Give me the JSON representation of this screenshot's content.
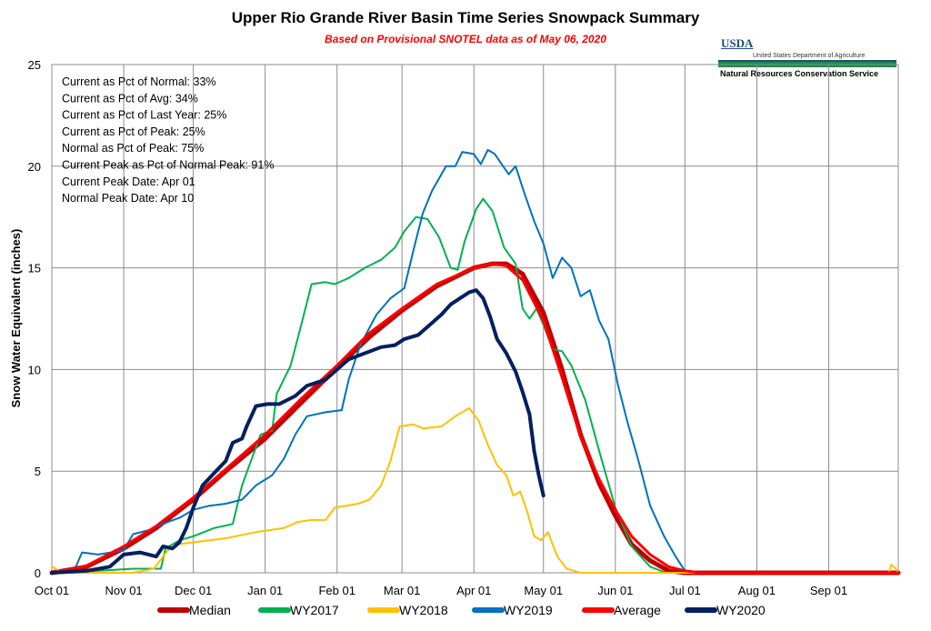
{
  "chart_data": {
    "type": "line",
    "title": "Upper Rio Grande River Basin Time Series Snowpack Summary",
    "subtitle": "Based on Provisional SNOTEL data as of May 06, 2020",
    "ylabel": "Snow Water Equivalent (inches)",
    "xlabel": "",
    "ylim": [
      0,
      25
    ],
    "yticks": [
      "0",
      "5",
      "10",
      "15",
      "20",
      "25"
    ],
    "xlim_days": [
      0,
      365
    ],
    "x_unit": "days from Oct 01",
    "xticks": [
      {
        "label": "Oct 01",
        "day": 0
      },
      {
        "label": "Nov 01",
        "day": 31
      },
      {
        "label": "Dec 01",
        "day": 61
      },
      {
        "label": "Jan 01",
        "day": 92
      },
      {
        "label": "Feb 01",
        "day": 123
      },
      {
        "label": "Mar 01",
        "day": 151
      },
      {
        "label": "Apr 01",
        "day": 182
      },
      {
        "label": "May 01",
        "day": 212
      },
      {
        "label": "Jun 01",
        "day": 243
      },
      {
        "label": "Jul 01",
        "day": 273
      },
      {
        "label": "Aug 01",
        "day": 304
      },
      {
        "label": "Sep 01",
        "day": 335
      }
    ],
    "grid": true,
    "legend_position": "bottom",
    "stats": [
      "Current  as Pct of Normal: 33%",
      "Current  as Pct of Avg: 34%",
      "Current  as Pct of Last Year: 25%",
      "Current  as Pct of Peak: 25%",
      "Normal as Pct of Peak: 75%",
      "Current  Peak as Pct of Normal  Peak: 91%",
      "Current  Peak Date: Apr 01",
      "Normal Peak Date: Apr 10"
    ],
    "series": [
      {
        "name": "Median",
        "color": "#c00000",
        "width": 5,
        "points": [
          [
            0,
            0
          ],
          [
            15,
            0.3
          ],
          [
            31,
            1.2
          ],
          [
            45,
            2.2
          ],
          [
            61,
            3.6
          ],
          [
            75,
            5.0
          ],
          [
            92,
            6.6
          ],
          [
            107,
            8.3
          ],
          [
            123,
            10.1
          ],
          [
            137,
            11.6
          ],
          [
            151,
            12.9
          ],
          [
            166,
            14.1
          ],
          [
            182,
            15.0
          ],
          [
            190,
            15.2
          ],
          [
            196,
            15.2
          ],
          [
            203,
            14.7
          ],
          [
            212,
            12.8
          ],
          [
            220,
            10.0
          ],
          [
            228,
            6.8
          ],
          [
            236,
            4.4
          ],
          [
            243,
            2.8
          ],
          [
            250,
            1.4
          ],
          [
            258,
            0.6
          ],
          [
            266,
            0.1
          ],
          [
            273,
            0
          ],
          [
            365,
            0
          ]
        ]
      },
      {
        "name": "WY2017",
        "color": "#00b050",
        "width": 2,
        "points": [
          [
            0,
            0
          ],
          [
            20,
            0.1
          ],
          [
            35,
            0.2
          ],
          [
            47,
            0.2
          ],
          [
            49,
            1.2
          ],
          [
            55,
            1.6
          ],
          [
            61,
            1.8
          ],
          [
            70,
            2.2
          ],
          [
            78,
            2.4
          ],
          [
            82,
            4.3
          ],
          [
            90,
            6.8
          ],
          [
            95,
            7.0
          ],
          [
            97,
            8.8
          ],
          [
            103,
            10.2
          ],
          [
            108,
            12.4
          ],
          [
            112,
            14.2
          ],
          [
            118,
            14.3
          ],
          [
            122,
            14.2
          ],
          [
            128,
            14.5
          ],
          [
            135,
            15.0
          ],
          [
            142,
            15.4
          ],
          [
            148,
            16.0
          ],
          [
            152,
            16.8
          ],
          [
            157,
            17.5
          ],
          [
            162,
            17.4
          ],
          [
            167,
            16.5
          ],
          [
            172,
            15.0
          ],
          [
            175,
            14.9
          ],
          [
            178,
            16.3
          ],
          [
            183,
            17.9
          ],
          [
            186,
            18.4
          ],
          [
            190,
            17.8
          ],
          [
            195,
            16.0
          ],
          [
            200,
            15.2
          ],
          [
            203,
            13.0
          ],
          [
            206,
            12.5
          ],
          [
            209,
            13.0
          ],
          [
            212,
            12.2
          ],
          [
            216,
            11.0
          ],
          [
            220,
            10.9
          ],
          [
            224,
            10.2
          ],
          [
            230,
            8.5
          ],
          [
            236,
            6.0
          ],
          [
            243,
            3.2
          ],
          [
            250,
            1.3
          ],
          [
            258,
            0.3
          ],
          [
            265,
            0
          ],
          [
            365,
            0
          ]
        ]
      },
      {
        "name": "WY2018",
        "color": "#ffc000",
        "width": 2,
        "points": [
          [
            0,
            0.3
          ],
          [
            5,
            0
          ],
          [
            35,
            0
          ],
          [
            44,
            0.2
          ],
          [
            50,
            1.1
          ],
          [
            54,
            1.4
          ],
          [
            61,
            1.5
          ],
          [
            75,
            1.7
          ],
          [
            88,
            2.0
          ],
          [
            100,
            2.2
          ],
          [
            106,
            2.5
          ],
          [
            112,
            2.6
          ],
          [
            118,
            2.6
          ],
          [
            122,
            3.2
          ],
          [
            132,
            3.4
          ],
          [
            137,
            3.6
          ],
          [
            142,
            4.3
          ],
          [
            146,
            5.5
          ],
          [
            150,
            7.2
          ],
          [
            156,
            7.3
          ],
          [
            160,
            7.1
          ],
          [
            168,
            7.2
          ],
          [
            174,
            7.7
          ],
          [
            180,
            8.1
          ],
          [
            184,
            7.5
          ],
          [
            188,
            6.3
          ],
          [
            192,
            5.3
          ],
          [
            196,
            4.8
          ],
          [
            199,
            3.8
          ],
          [
            202,
            4.0
          ],
          [
            205,
            3.0
          ],
          [
            208,
            1.8
          ],
          [
            211,
            1.6
          ],
          [
            214,
            2.0
          ],
          [
            218,
            0.8
          ],
          [
            222,
            0.2
          ],
          [
            228,
            0
          ],
          [
            365,
            0
          ],
          [
            361,
            0
          ],
          [
            362,
            0.4
          ],
          [
            364,
            0.2
          ],
          [
            365,
            0
          ]
        ]
      },
      {
        "name": "WY2019",
        "color": "#0070c0",
        "width": 2,
        "points": [
          [
            0,
            0
          ],
          [
            10,
            0.2
          ],
          [
            13,
            1.0
          ],
          [
            20,
            0.9
          ],
          [
            31,
            1.1
          ],
          [
            35,
            1.9
          ],
          [
            42,
            2.1
          ],
          [
            50,
            2.5
          ],
          [
            55,
            2.7
          ],
          [
            61,
            3.1
          ],
          [
            68,
            3.3
          ],
          [
            75,
            3.4
          ],
          [
            82,
            3.6
          ],
          [
            88,
            4.3
          ],
          [
            95,
            4.8
          ],
          [
            100,
            5.6
          ],
          [
            105,
            6.8
          ],
          [
            110,
            7.7
          ],
          [
            118,
            7.9
          ],
          [
            125,
            8.0
          ],
          [
            128,
            9.5
          ],
          [
            133,
            11.2
          ],
          [
            140,
            12.7
          ],
          [
            146,
            13.5
          ],
          [
            152,
            14.0
          ],
          [
            156,
            15.9
          ],
          [
            160,
            17.7
          ],
          [
            164,
            18.8
          ],
          [
            170,
            20.0
          ],
          [
            174,
            20.0
          ],
          [
            177,
            20.7
          ],
          [
            182,
            20.6
          ],
          [
            185,
            20.1
          ],
          [
            188,
            20.8
          ],
          [
            191,
            20.6
          ],
          [
            194,
            20.1
          ],
          [
            197,
            19.6
          ],
          [
            200,
            20.0
          ],
          [
            204,
            18.6
          ],
          [
            208,
            17.3
          ],
          [
            212,
            16.2
          ],
          [
            216,
            14.5
          ],
          [
            220,
            15.5
          ],
          [
            224,
            15.0
          ],
          [
            228,
            13.6
          ],
          [
            232,
            13.9
          ],
          [
            236,
            12.4
          ],
          [
            240,
            11.5
          ],
          [
            244,
            9.3
          ],
          [
            248,
            7.5
          ],
          [
            253,
            5.5
          ],
          [
            258,
            3.3
          ],
          [
            264,
            1.8
          ],
          [
            269,
            0.8
          ],
          [
            273,
            0.1
          ],
          [
            278,
            0
          ],
          [
            365,
            0
          ]
        ]
      },
      {
        "name": "Average",
        "color": "#ff0000",
        "width": 3,
        "points": [
          [
            0,
            0
          ],
          [
            15,
            0.35
          ],
          [
            31,
            1.3
          ],
          [
            45,
            2.3
          ],
          [
            61,
            3.7
          ],
          [
            75,
            5.1
          ],
          [
            92,
            6.8
          ],
          [
            107,
            8.5
          ],
          [
            123,
            10.2
          ],
          [
            137,
            11.8
          ],
          [
            151,
            13.0
          ],
          [
            166,
            14.2
          ],
          [
            182,
            15.0
          ],
          [
            190,
            15.2
          ],
          [
            196,
            15.1
          ],
          [
            203,
            14.4
          ],
          [
            212,
            12.4
          ],
          [
            220,
            9.6
          ],
          [
            228,
            6.7
          ],
          [
            236,
            4.6
          ],
          [
            243,
            3.1
          ],
          [
            250,
            1.8
          ],
          [
            258,
            0.9
          ],
          [
            266,
            0.3
          ],
          [
            273,
            0.1
          ],
          [
            280,
            0
          ],
          [
            365,
            0
          ]
        ]
      },
      {
        "name": "WY2020",
        "color": "#002060",
        "width": 4,
        "points": [
          [
            0,
            0
          ],
          [
            15,
            0.1
          ],
          [
            25,
            0.3
          ],
          [
            31,
            0.9
          ],
          [
            38,
            1.0
          ],
          [
            45,
            0.8
          ],
          [
            48,
            1.3
          ],
          [
            52,
            1.2
          ],
          [
            55,
            1.5
          ],
          [
            58,
            2.2
          ],
          [
            61,
            3.2
          ],
          [
            65,
            4.3
          ],
          [
            70,
            4.9
          ],
          [
            75,
            5.5
          ],
          [
            78,
            6.4
          ],
          [
            82,
            6.6
          ],
          [
            84,
            7.2
          ],
          [
            88,
            8.2
          ],
          [
            93,
            8.3
          ],
          [
            98,
            8.3
          ],
          [
            105,
            8.7
          ],
          [
            110,
            9.2
          ],
          [
            118,
            9.5
          ],
          [
            122,
            9.9
          ],
          [
            128,
            10.5
          ],
          [
            135,
            10.8
          ],
          [
            142,
            11.1
          ],
          [
            148,
            11.2
          ],
          [
            152,
            11.5
          ],
          [
            158,
            11.7
          ],
          [
            163,
            12.2
          ],
          [
            168,
            12.7
          ],
          [
            172,
            13.2
          ],
          [
            176,
            13.5
          ],
          [
            180,
            13.8
          ],
          [
            183,
            13.9
          ],
          [
            186,
            13.5
          ],
          [
            189,
            12.6
          ],
          [
            192,
            11.5
          ],
          [
            196,
            10.8
          ],
          [
            200,
            9.9
          ],
          [
            203,
            8.9
          ],
          [
            206,
            7.8
          ],
          [
            208,
            6.0
          ],
          [
            210,
            4.8
          ],
          [
            212,
            3.8
          ]
        ]
      }
    ]
  }
}
